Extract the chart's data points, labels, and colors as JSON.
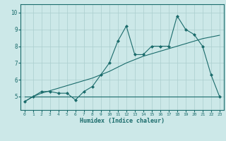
{
  "x": [
    0,
    1,
    2,
    3,
    4,
    5,
    6,
    7,
    8,
    9,
    10,
    11,
    12,
    13,
    14,
    15,
    16,
    17,
    18,
    19,
    20,
    21,
    22,
    23
  ],
  "y_jagged": [
    4.7,
    5.0,
    5.3,
    5.3,
    5.2,
    5.2,
    4.8,
    5.3,
    5.6,
    6.3,
    7.0,
    8.3,
    9.2,
    7.5,
    7.5,
    8.0,
    8.0,
    8.0,
    9.8,
    9.0,
    8.7,
    8.0,
    6.3,
    5.0
  ],
  "y_trend": [
    4.7,
    5.0,
    5.2,
    5.35,
    5.5,
    5.65,
    5.8,
    5.95,
    6.1,
    6.3,
    6.5,
    6.75,
    7.0,
    7.2,
    7.4,
    7.55,
    7.7,
    7.85,
    8.0,
    8.15,
    8.3,
    8.45,
    8.55,
    8.65
  ],
  "y_flat": [
    5.0,
    5.0,
    5.0,
    5.0,
    5.0,
    5.0,
    5.0,
    5.0,
    5.0,
    5.0,
    5.0,
    5.0,
    5.0,
    5.0,
    5.0,
    5.0,
    5.0,
    5.0,
    5.0,
    5.0,
    5.0,
    5.0,
    5.0,
    5.0
  ],
  "line_color": "#1a6b6b",
  "bg_color": "#cce8e8",
  "grid_color": "#aacece",
  "xlabel": "Humidex (Indice chaleur)",
  "xlim": [
    -0.5,
    23.5
  ],
  "ylim": [
    4.2,
    10.5
  ],
  "yticks": [
    5,
    6,
    7,
    8,
    9,
    10
  ],
  "xticks": [
    0,
    1,
    2,
    3,
    4,
    5,
    6,
    7,
    8,
    9,
    10,
    11,
    12,
    13,
    14,
    15,
    16,
    17,
    18,
    19,
    20,
    21,
    22,
    23
  ]
}
